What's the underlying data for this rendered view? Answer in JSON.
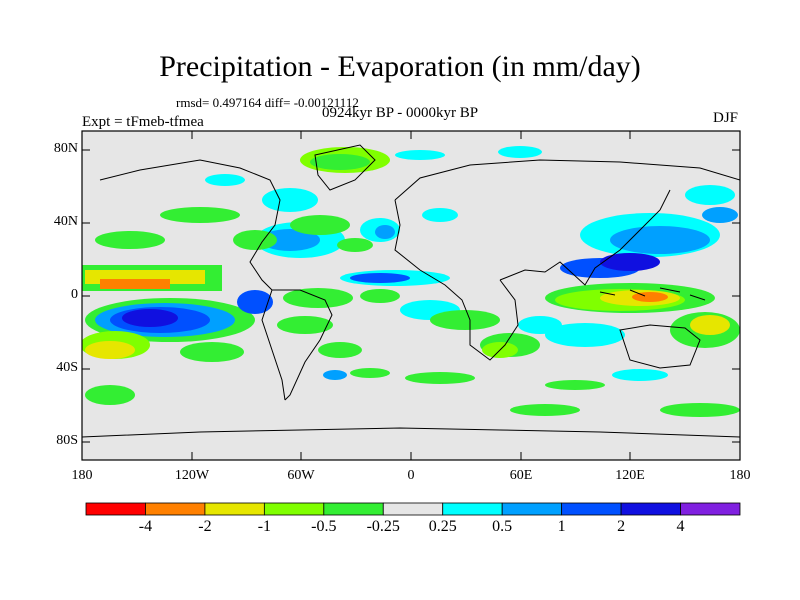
{
  "title": "Precipitation - Evaporation (in mm/day)",
  "stats": "rmsd= 0.497164 diff= -0.00121112",
  "experiment": "Expt = tFmeb-tfmea",
  "period": "0924kyr BP - 0000kyr BP",
  "season": "DJF",
  "y_ticks": [
    "80N",
    "40N",
    "0",
    "40S",
    "80S"
  ],
  "x_ticks": [
    "180",
    "120W",
    "60W",
    "0",
    "60E",
    "120E",
    "180"
  ],
  "colorbar": {
    "colors": [
      "#ff0000",
      "#ff8000",
      "#e6e600",
      "#80ff00",
      "#33ee33",
      "#e6e6e6",
      "#00ffff",
      "#00a0ff",
      "#0050ff",
      "#1010e0",
      "#8020e0"
    ],
    "labels": [
      "-4",
      "-2",
      "-1",
      "-0.5",
      "-0.25",
      "0.25",
      "0.5",
      "1",
      "2",
      "4"
    ]
  },
  "colors": {
    "ocean_background": "#e6e6e6",
    "coastline": "#000000"
  }
}
